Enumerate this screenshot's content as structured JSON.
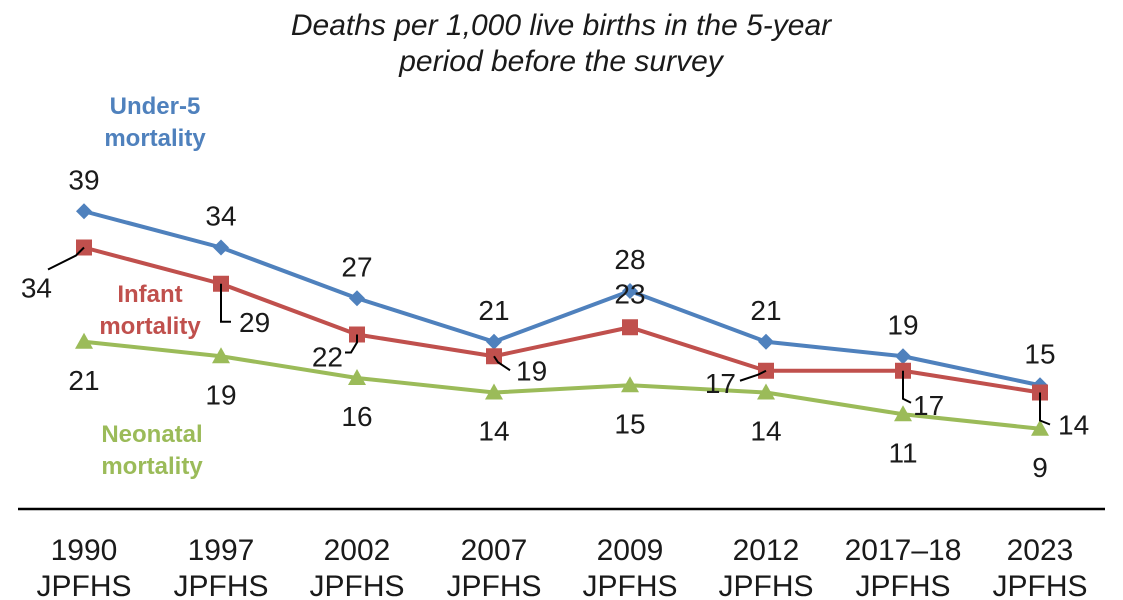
{
  "chart_data": {
    "type": "line",
    "title": "Deaths per 1,000 live births in the 5-year period before the survey",
    "title_lines": [
      "Deaths per 1,000 live births in the 5-year",
      "period before the survey"
    ],
    "categories": [
      [
        "1990",
        "JPFHS"
      ],
      [
        "1997",
        "JPFHS"
      ],
      [
        "2002",
        "JPFHS"
      ],
      [
        "2007",
        "JPFHS"
      ],
      [
        "2009",
        "JPFHS"
      ],
      [
        "2012",
        "JPFHS"
      ],
      [
        "2017–18",
        "JPFHS"
      ],
      [
        "2023",
        "JPFHS"
      ]
    ],
    "ylim": [
      0,
      45
    ],
    "grid": false,
    "series": [
      {
        "name": "Under-5 mortality",
        "label_lines": [
          "Under-5",
          "mortality"
        ],
        "color": "#4f81bd",
        "marker": "diamond",
        "values": [
          39,
          34,
          27,
          21,
          28,
          21,
          19,
          15
        ]
      },
      {
        "name": "Infant mortality",
        "label_lines": [
          "Infant",
          "mortality"
        ],
        "color": "#c0504d",
        "marker": "square",
        "values": [
          34,
          29,
          22,
          19,
          23,
          17,
          17,
          14
        ]
      },
      {
        "name": "Neonatal mortality",
        "label_lines": [
          "Neonatal",
          "mortality"
        ],
        "color": "#9bbb59",
        "marker": "triangle",
        "values": [
          21,
          19,
          16,
          14,
          15,
          14,
          11,
          9
        ]
      }
    ]
  }
}
